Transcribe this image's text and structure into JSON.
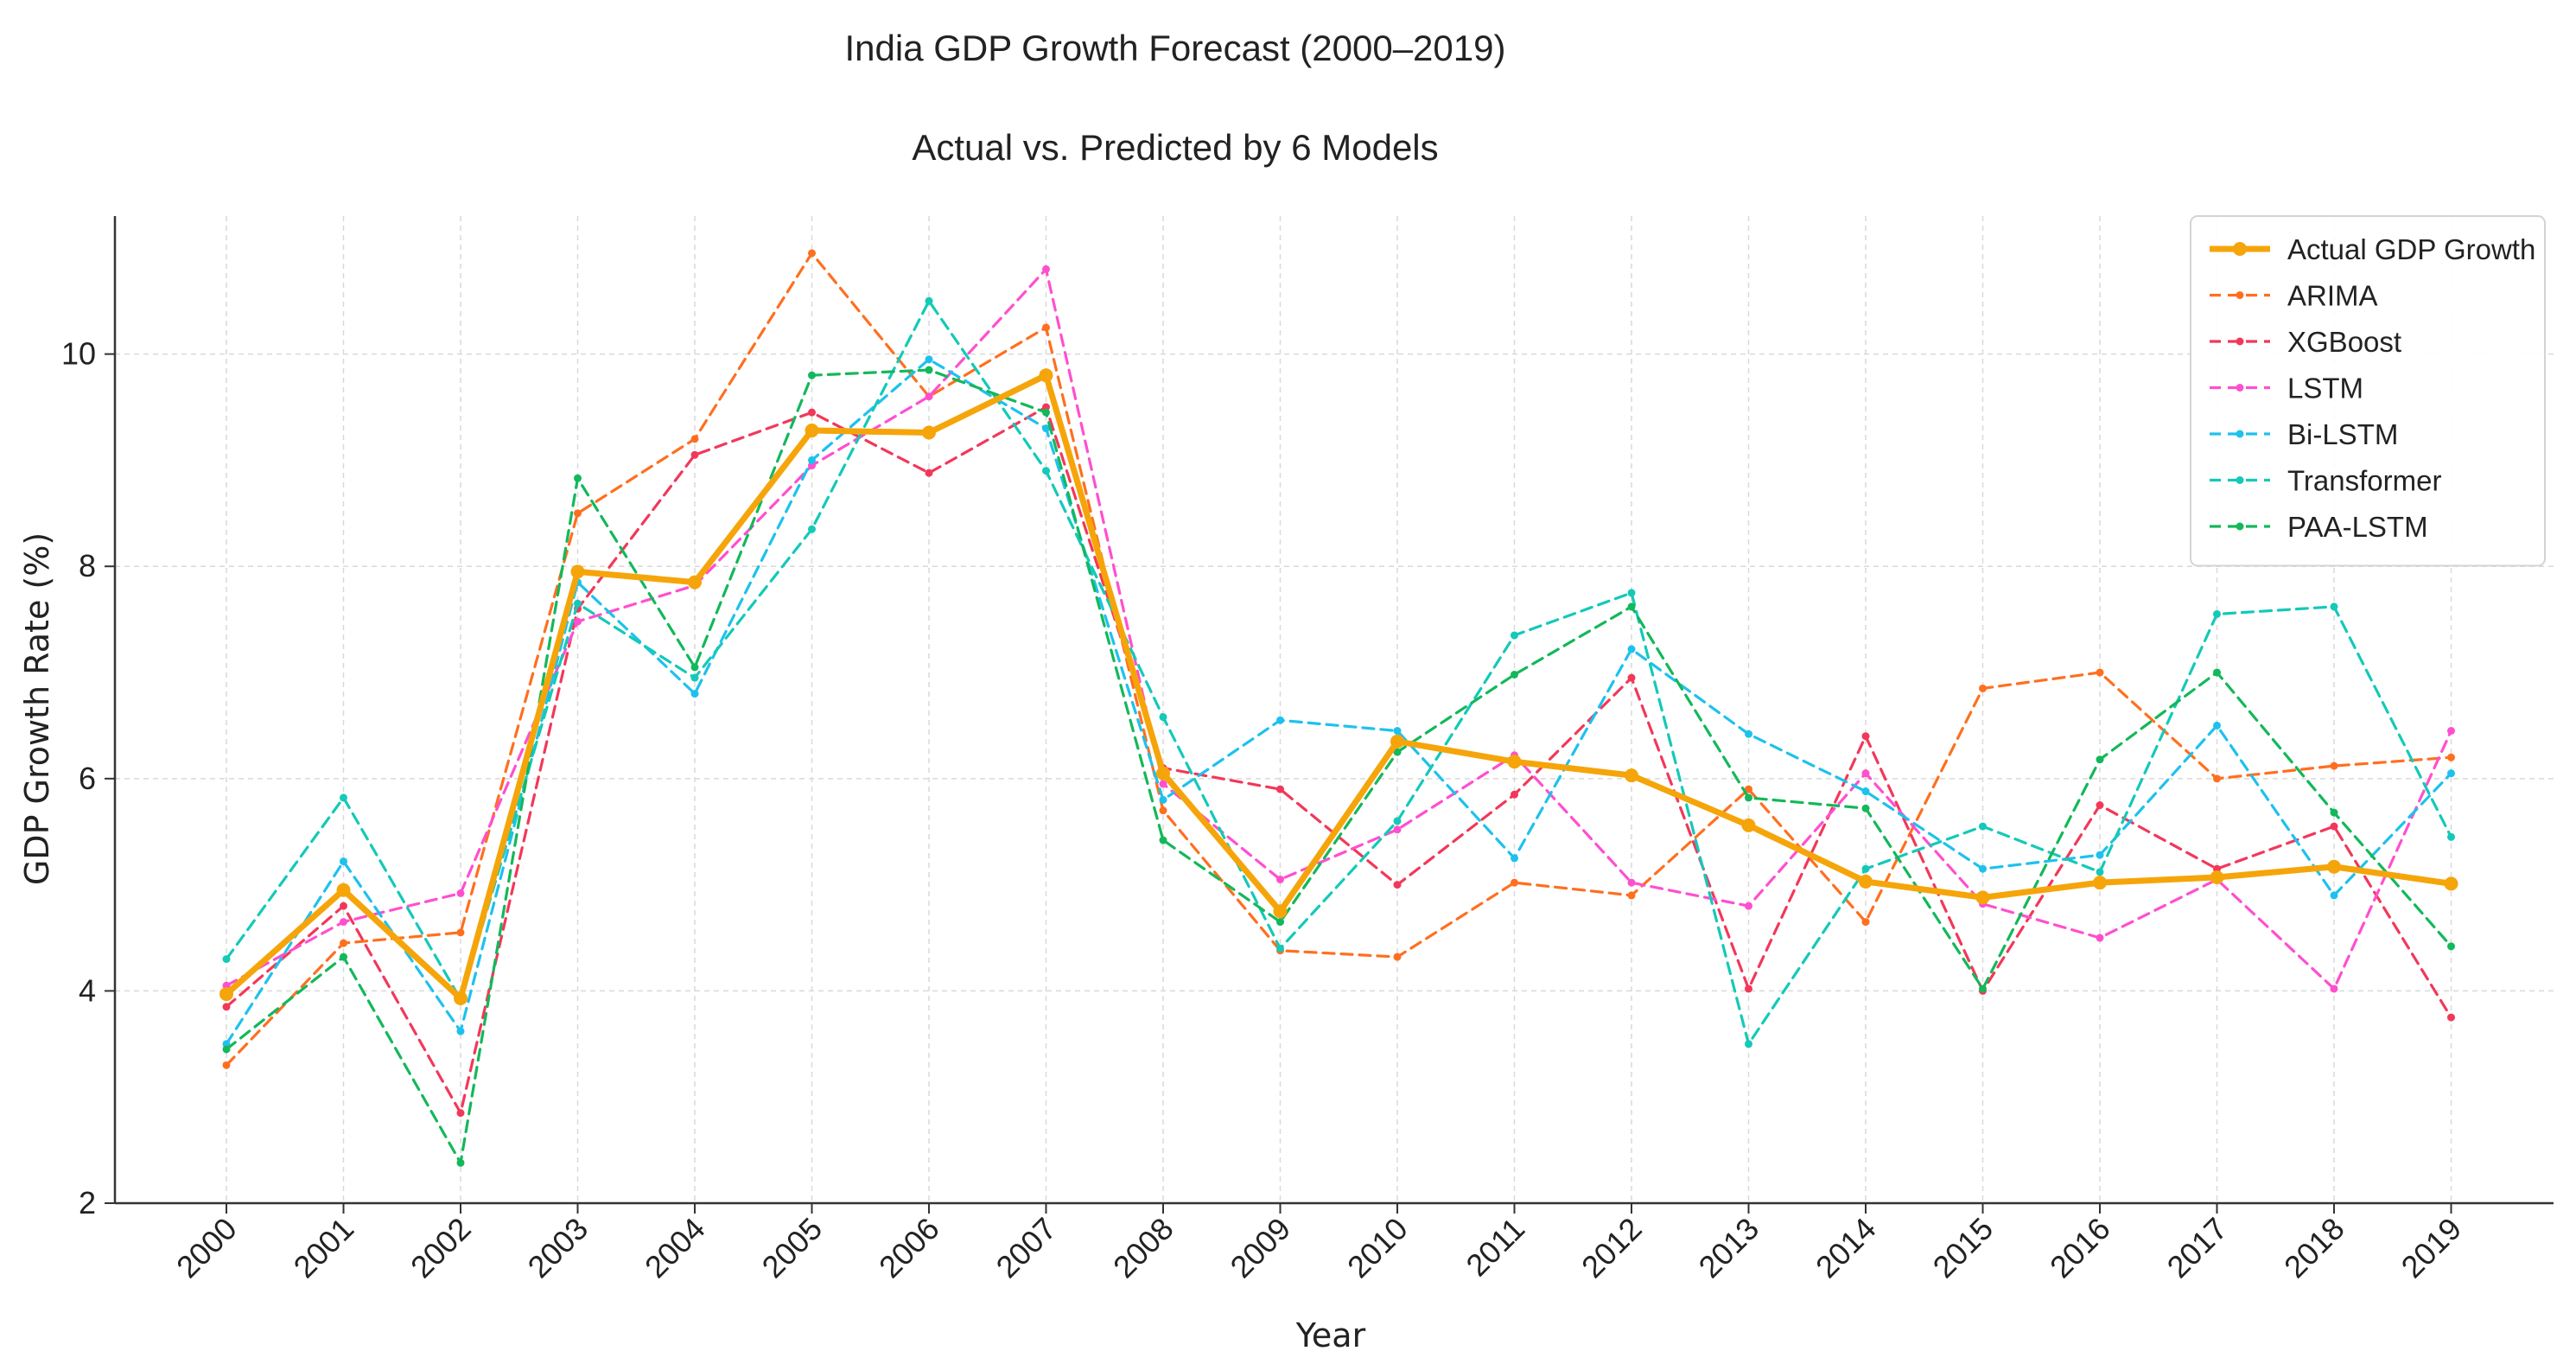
{
  "chart_data": {
    "type": "line",
    "title": "India GDP Growth Forecast (2000–2019)",
    "subtitle": "Actual vs. Predicted by 6 Models",
    "xlabel": "Year",
    "ylabel": "GDP Growth Rate (%)",
    "x": [
      "2000",
      "2001",
      "2002",
      "2003",
      "2004",
      "2005",
      "2006",
      "2007",
      "2008",
      "2009",
      "2010",
      "2011",
      "2012",
      "2013",
      "2014",
      "2015",
      "2016",
      "2017",
      "2018",
      "2019"
    ],
    "ylim": [
      2,
      11.3
    ],
    "yticks": [
      "2",
      "4",
      "6",
      "8",
      "10"
    ],
    "grid": true,
    "legend_position": "top-right",
    "series": [
      {
        "name": "ARIMA",
        "color": "#ff6f1f",
        "style": "dashed",
        "values": [
          3.3,
          4.45,
          4.55,
          8.5,
          9.2,
          10.95,
          9.6,
          10.25,
          5.7,
          4.38,
          4.32,
          5.02,
          4.9,
          5.9,
          4.65,
          6.85,
          7.0,
          6.0,
          6.12,
          6.2
        ]
      },
      {
        "name": "XGBoost",
        "color": "#f2385a",
        "style": "dashed",
        "values": [
          3.85,
          4.8,
          2.85,
          7.6,
          9.05,
          9.45,
          8.88,
          9.5,
          6.1,
          5.9,
          5.0,
          5.85,
          6.95,
          4.02,
          6.4,
          4.0,
          5.75,
          5.15,
          5.55,
          3.75
        ]
      },
      {
        "name": "LSTM",
        "color": "#ff4fcf",
        "style": "dashed",
        "values": [
          4.05,
          4.65,
          4.92,
          7.48,
          7.82,
          8.95,
          9.6,
          10.8,
          5.95,
          5.05,
          5.52,
          6.22,
          5.02,
          4.8,
          6.05,
          4.82,
          4.5,
          5.05,
          4.02,
          6.45
        ]
      },
      {
        "name": "Bi-LSTM",
        "color": "#1ec1ee",
        "style": "dashed",
        "values": [
          3.5,
          5.22,
          3.62,
          7.85,
          6.8,
          9.0,
          9.95,
          9.3,
          5.8,
          6.55,
          6.45,
          5.25,
          7.22,
          6.42,
          5.88,
          5.15,
          5.28,
          6.5,
          4.9,
          6.05
        ]
      },
      {
        "name": "Transformer",
        "color": "#14c9b8",
        "style": "dashed",
        "values": [
          4.3,
          5.82,
          3.92,
          7.65,
          6.95,
          8.35,
          10.5,
          8.9,
          6.58,
          4.4,
          5.6,
          7.35,
          7.75,
          3.5,
          5.15,
          5.55,
          5.12,
          7.55,
          7.62,
          5.45
        ]
      },
      {
        "name": "PAA-LSTM",
        "color": "#13b85a",
        "style": "dashed",
        "values": [
          3.45,
          4.32,
          2.38,
          8.83,
          7.05,
          9.8,
          9.85,
          9.45,
          5.42,
          4.65,
          6.25,
          6.98,
          7.62,
          5.82,
          5.72,
          4.02,
          6.18,
          7.0,
          5.68,
          4.42
        ]
      },
      {
        "name": "Actual GDP Growth",
        "color": "#f5a50a",
        "style": "solid",
        "values": [
          3.97,
          4.95,
          3.93,
          7.95,
          7.85,
          9.28,
          9.26,
          9.8,
          6.05,
          4.75,
          6.35,
          6.16,
          6.03,
          5.56,
          5.03,
          4.88,
          5.02,
          5.07,
          5.17,
          5.01
        ]
      }
    ],
    "legend_order": [
      "Actual GDP Growth",
      "ARIMA",
      "XGBoost",
      "LSTM",
      "Bi-LSTM",
      "Transformer",
      "PAA-LSTM"
    ]
  }
}
